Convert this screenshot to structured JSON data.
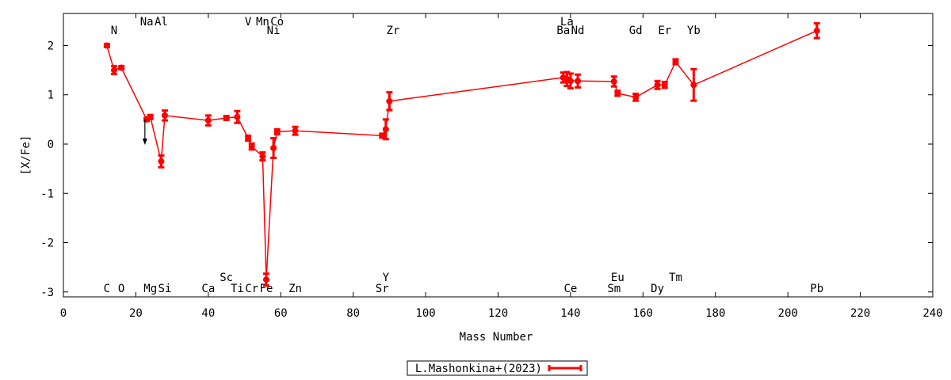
{
  "chart_data": {
    "type": "scatter",
    "title": "",
    "xlabel": "Mass Number",
    "ylabel": "[X/Fe]",
    "xlim": [
      0,
      240
    ],
    "ylim": [
      -3.1,
      2.65
    ],
    "xticks": [
      0,
      20,
      40,
      60,
      80,
      100,
      120,
      140,
      160,
      180,
      200,
      220,
      240
    ],
    "yticks": [
      -3,
      -2,
      -1,
      0,
      1,
      2
    ],
    "grid": false,
    "legend_position": "bottom-center",
    "series": [
      {
        "name": "L.Mashonkina+(2023)",
        "color": "#ff0000",
        "points": [
          {
            "x": 12,
            "y": 2.0,
            "err": 0.03
          },
          {
            "x": 14,
            "y": 1.5,
            "err": 0.08
          },
          {
            "x": 16,
            "y": 1.55,
            "err": 0.03
          },
          {
            "x": 23,
            "y": 0.5,
            "err": 0.03
          },
          {
            "x": 24,
            "y": 0.55,
            "err": 0.04
          },
          {
            "x": 27,
            "y": -0.35,
            "err": 0.12
          },
          {
            "x": 28,
            "y": 0.58,
            "err": 0.1
          },
          {
            "x": 40,
            "y": 0.48,
            "err": 0.1
          },
          {
            "x": 45,
            "y": 0.53,
            "err": 0.04
          },
          {
            "x": 48,
            "y": 0.55,
            "err": 0.12
          },
          {
            "x": 51,
            "y": 0.12,
            "err": 0.05
          },
          {
            "x": 52,
            "y": -0.05,
            "err": 0.06
          },
          {
            "x": 55,
            "y": -0.25,
            "err": 0.08
          },
          {
            "x": 56,
            "y": -2.75,
            "err": 0.12
          },
          {
            "x": 58,
            "y": -0.08,
            "err": 0.2
          },
          {
            "x": 59,
            "y": 0.25,
            "err": 0.05
          },
          {
            "x": 64,
            "y": 0.27,
            "err": 0.08
          },
          {
            "x": 88,
            "y": 0.17,
            "err": 0.04
          },
          {
            "x": 89,
            "y": 0.3,
            "err": 0.2
          },
          {
            "x": 90,
            "y": 0.87,
            "err": 0.18
          },
          {
            "x": 138,
            "y": 1.35,
            "err": 0.1
          },
          {
            "x": 139,
            "y": 1.32,
            "err": 0.14
          },
          {
            "x": 140,
            "y": 1.28,
            "err": 0.15
          },
          {
            "x": 142,
            "y": 1.28,
            "err": 0.13
          },
          {
            "x": 152,
            "y": 1.27,
            "err": 0.1
          },
          {
            "x": 153,
            "y": 1.03,
            "err": 0.05
          },
          {
            "x": 158,
            "y": 0.95,
            "err": 0.07
          },
          {
            "x": 164,
            "y": 1.2,
            "err": 0.08
          },
          {
            "x": 166,
            "y": 1.2,
            "err": 0.06
          },
          {
            "x": 169,
            "y": 1.67,
            "err": 0.05
          },
          {
            "x": 174,
            "y": 1.2,
            "err": 0.32
          },
          {
            "x": 208,
            "y": 2.3,
            "err": 0.15
          }
        ]
      }
    ],
    "upper_limit_arrow": {
      "x": 22.5,
      "y_from": 0.5,
      "y_to": 0.0
    },
    "element_labels": [
      {
        "text": "C",
        "x": 12,
        "row": "bottom1"
      },
      {
        "text": "N",
        "x": 14,
        "row": "top2"
      },
      {
        "text": "O",
        "x": 16,
        "row": "bottom1"
      },
      {
        "text": "Na",
        "x": 23,
        "row": "top1"
      },
      {
        "text": "Mg",
        "x": 24,
        "row": "bottom1"
      },
      {
        "text": "Al",
        "x": 27,
        "row": "top1"
      },
      {
        "text": "Si",
        "x": 28,
        "row": "bottom1"
      },
      {
        "text": "Ca",
        "x": 40,
        "row": "bottom1"
      },
      {
        "text": "Sc",
        "x": 45,
        "row": "bottom2"
      },
      {
        "text": "Ti",
        "x": 48,
        "row": "bottom1"
      },
      {
        "text": "V",
        "x": 51,
        "row": "top1"
      },
      {
        "text": "Cr",
        "x": 52,
        "row": "bottom1"
      },
      {
        "text": "Mn",
        "x": 55,
        "row": "top1"
      },
      {
        "text": "Fe",
        "x": 56,
        "row": "bottom1"
      },
      {
        "text": "Co",
        "x": 59,
        "row": "top1"
      },
      {
        "text": "Ni",
        "x": 58,
        "row": "top2"
      },
      {
        "text": "Zn",
        "x": 64,
        "row": "bottom1"
      },
      {
        "text": "Sr",
        "x": 88,
        "row": "bottom1"
      },
      {
        "text": "Y",
        "x": 89,
        "row": "bottom2"
      },
      {
        "text": "Zr",
        "x": 91,
        "row": "top2"
      },
      {
        "text": "Ba",
        "x": 138,
        "row": "top2"
      },
      {
        "text": "La",
        "x": 139,
        "row": "top1"
      },
      {
        "text": "Ce",
        "x": 140,
        "row": "bottom1"
      },
      {
        "text": "Nd",
        "x": 142,
        "row": "top2"
      },
      {
        "text": "Sm",
        "x": 152,
        "row": "bottom1"
      },
      {
        "text": "Eu",
        "x": 153,
        "row": "bottom2"
      },
      {
        "text": "Gd",
        "x": 158,
        "row": "top2"
      },
      {
        "text": "Dy",
        "x": 164,
        "row": "bottom1"
      },
      {
        "text": "Er",
        "x": 166,
        "row": "top2"
      },
      {
        "text": "Tm",
        "x": 169,
        "row": "bottom2"
      },
      {
        "text": "Yb",
        "x": 174,
        "row": "top2"
      },
      {
        "text": "Pb",
        "x": 208,
        "row": "bottom1"
      }
    ]
  }
}
